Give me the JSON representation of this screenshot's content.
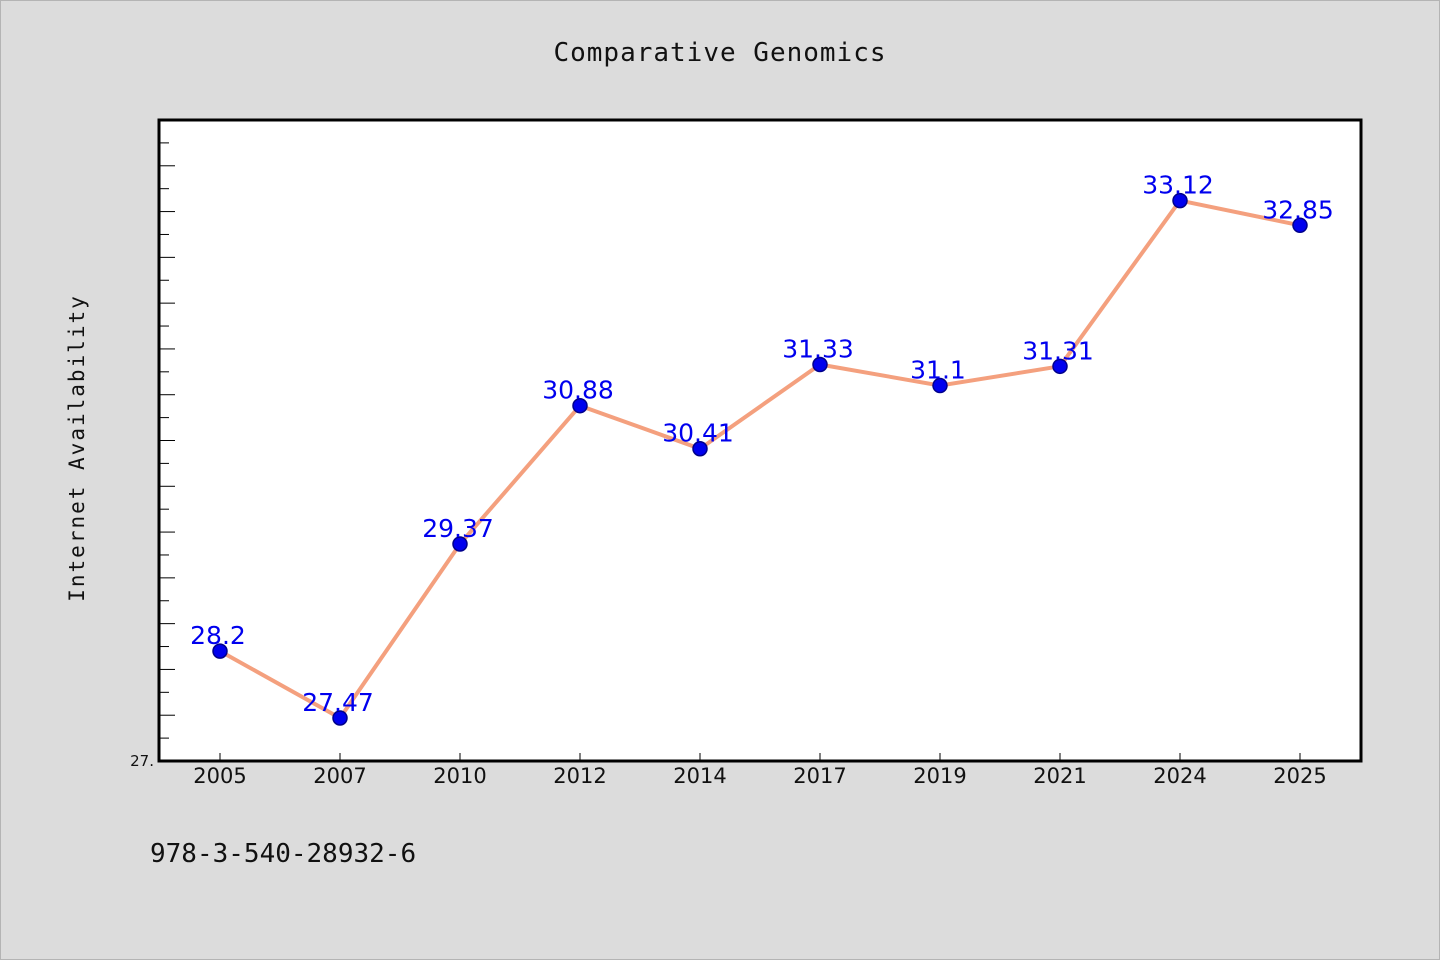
{
  "chart_data": {
    "type": "line",
    "title": "Comparative Genomics",
    "xlabel": "",
    "ylabel": "Internet Availability",
    "categories": [
      "2005",
      "2007",
      "2010",
      "2012",
      "2014",
      "2017",
      "2019",
      "2021",
      "2024",
      "2025"
    ],
    "series": [
      {
        "values": [
          28.2,
          27.47,
          29.37,
          30.88,
          30.41,
          31.33,
          31.1,
          31.31,
          33.12,
          32.85
        ],
        "labels": [
          "28.2",
          "27.47",
          "29.37",
          "30.88",
          "30.41",
          "31.33",
          "31.1",
          "31.31",
          "33.12",
          "32.85"
        ]
      }
    ],
    "ylim": [
      27,
      34
    ],
    "y_tick_label": "27.",
    "grid": false,
    "line_color": "#f4a07e",
    "marker_color": "#0000ee",
    "label_color": "#0000ee"
  },
  "footer": {
    "text": "978-3-540-28932-6"
  }
}
